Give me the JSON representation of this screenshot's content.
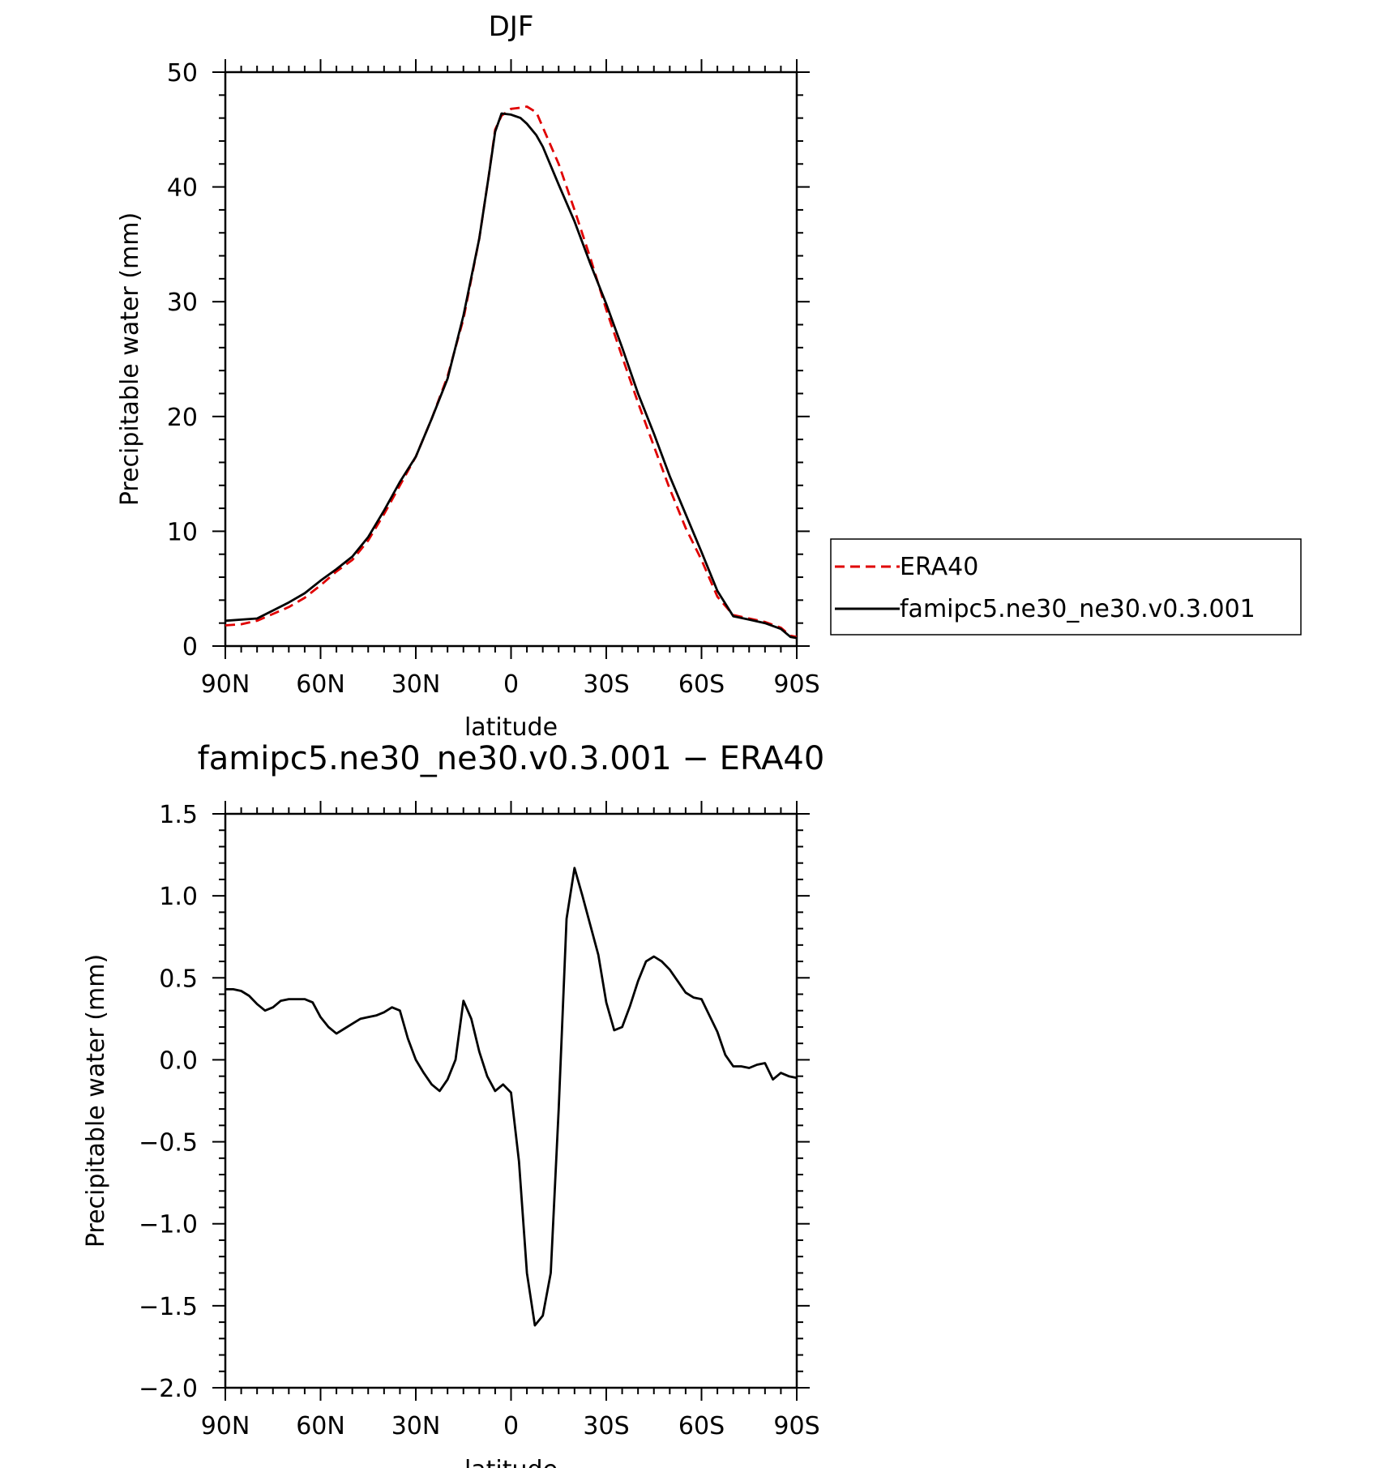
{
  "chart_data": [
    {
      "type": "line",
      "title": "DJF",
      "xlabel": "latitude",
      "ylabel": "Precipitable water (mm)",
      "xlim": [
        90,
        -90
      ],
      "ylim": [
        0,
        50
      ],
      "xticks": [
        90,
        60,
        30,
        0,
        -30,
        -60,
        -90
      ],
      "xtick_labels": [
        "90N",
        "60N",
        "30N",
        "0",
        "30S",
        "60S",
        "90S"
      ],
      "yticks": [
        0,
        10,
        20,
        30,
        40,
        50
      ],
      "ytick_labels": [
        "0",
        "10",
        "20",
        "30",
        "40",
        "50"
      ],
      "grid": false,
      "legend": "right",
      "series": [
        {
          "name": "ERA40",
          "color": "#e00000",
          "dash": "dashed",
          "x": [
            90,
            85,
            80,
            75,
            70,
            65,
            60,
            55,
            50,
            45,
            40,
            35,
            30,
            25,
            20,
            15,
            10,
            7,
            5,
            3,
            0,
            -3,
            -5,
            -8,
            -10,
            -15,
            -20,
            -25,
            -30,
            -35,
            -40,
            -45,
            -50,
            -55,
            -60,
            -65,
            -70,
            -75,
            -80,
            -85,
            -88,
            -90
          ],
          "values": [
            1.8,
            1.9,
            2.2,
            2.8,
            3.4,
            4.2,
            5.3,
            6.5,
            7.5,
            9.2,
            11.5,
            14,
            16.5,
            19.8,
            23.5,
            28.5,
            35.5,
            41,
            45,
            46.2,
            46.8,
            46.9,
            47.0,
            46.5,
            45.2,
            42,
            38,
            33.8,
            29.3,
            25.2,
            21.2,
            17.4,
            13.7,
            10.3,
            7.5,
            4.3,
            2.7,
            2.4,
            2.1,
            1.6,
            0.9,
            0.8
          ]
        },
        {
          "name": "famipc5.ne30_ne30.v0.3.001",
          "color": "#000000",
          "dash": "solid",
          "x": [
            90,
            85,
            80,
            75,
            70,
            65,
            60,
            55,
            50,
            45,
            40,
            35,
            30,
            25,
            20,
            15,
            10,
            7,
            5,
            3,
            0,
            -3,
            -5,
            -8,
            -10,
            -15,
            -20,
            -25,
            -30,
            -35,
            -40,
            -45,
            -50,
            -55,
            -60,
            -65,
            -70,
            -75,
            -80,
            -85,
            -88,
            -90
          ],
          "values": [
            2.2,
            2.3,
            2.4,
            3.1,
            3.8,
            4.6,
            5.7,
            6.7,
            7.8,
            9.5,
            11.8,
            14.3,
            16.5,
            19.8,
            23.3,
            28.8,
            35.5,
            41,
            44.8,
            46.4,
            46.3,
            46.0,
            45.5,
            44.5,
            43.5,
            40.2,
            37.0,
            33.3,
            29.8,
            26.0,
            22.0,
            18.5,
            14.8,
            11.5,
            8.2,
            4.8,
            2.6,
            2.3,
            2.0,
            1.5,
            0.8,
            0.7
          ]
        }
      ]
    },
    {
      "type": "line",
      "title": "famipc5.ne30_ne30.v0.3.001 − ERA40",
      "xlabel": "latitude",
      "ylabel": "Precipitable water (mm)",
      "xlim": [
        90,
        -90
      ],
      "ylim": [
        -2.0,
        1.5
      ],
      "xticks": [
        90,
        60,
        30,
        0,
        -30,
        -60,
        -90
      ],
      "xtick_labels": [
        "90N",
        "60N",
        "30N",
        "0",
        "30S",
        "60S",
        "90S"
      ],
      "yticks": [
        -2.0,
        -1.5,
        -1.0,
        -0.5,
        0.0,
        0.5,
        1.0,
        1.5
      ],
      "ytick_labels": [
        "−2.0",
        "−1.5",
        "−1.0",
        "−0.5",
        "0.0",
        "0.5",
        "1.0",
        "1.5"
      ],
      "grid": false,
      "series": [
        {
          "color": "#000000",
          "dash": "solid",
          "x": [
            90,
            87.5,
            85,
            82.5,
            80,
            77.5,
            75,
            72.5,
            70,
            67.5,
            65,
            62.5,
            60,
            57.5,
            55,
            52.5,
            50,
            47.5,
            45,
            42.5,
            40,
            37.5,
            35,
            32.5,
            30,
            27.5,
            25,
            22.5,
            20,
            17.5,
            15,
            12.5,
            10,
            7.5,
            5,
            2.5,
            0,
            -2.5,
            -5,
            -7.5,
            -10,
            -12.5,
            -15,
            -17.5,
            -20,
            -22.5,
            -25,
            -27.5,
            -30,
            -32.5,
            -35,
            -37.5,
            -40,
            -42.5,
            -45,
            -47.5,
            -50,
            -52.5,
            -55,
            -57.5,
            -60,
            -62.5,
            -65,
            -67.5,
            -70,
            -72.5,
            -75,
            -77.5,
            -80,
            -82.5,
            -85,
            -87.5,
            -90
          ],
          "values": [
            0.43,
            0.43,
            0.42,
            0.39,
            0.34,
            0.3,
            0.32,
            0.36,
            0.37,
            0.37,
            0.37,
            0.35,
            0.26,
            0.2,
            0.16,
            0.19,
            0.22,
            0.25,
            0.26,
            0.27,
            0.29,
            0.32,
            0.3,
            0.13,
            0.0,
            -0.08,
            -0.15,
            -0.19,
            -0.12,
            0.0,
            0.36,
            0.25,
            0.05,
            -0.1,
            -0.19,
            -0.15,
            -0.2,
            -0.62,
            -1.3,
            -1.62,
            -1.56,
            -1.3,
            -0.3,
            0.86,
            1.17,
            1.0,
            0.82,
            0.64,
            0.35,
            0.18,
            0.2,
            0.33,
            0.48,
            0.6,
            0.63,
            0.6,
            0.55,
            0.48,
            0.41,
            0.38,
            0.37,
            0.27,
            0.17,
            0.03,
            -0.04,
            -0.04,
            -0.05,
            -0.03,
            -0.02,
            -0.12,
            -0.08,
            -0.1,
            -0.11
          ]
        }
      ]
    }
  ]
}
